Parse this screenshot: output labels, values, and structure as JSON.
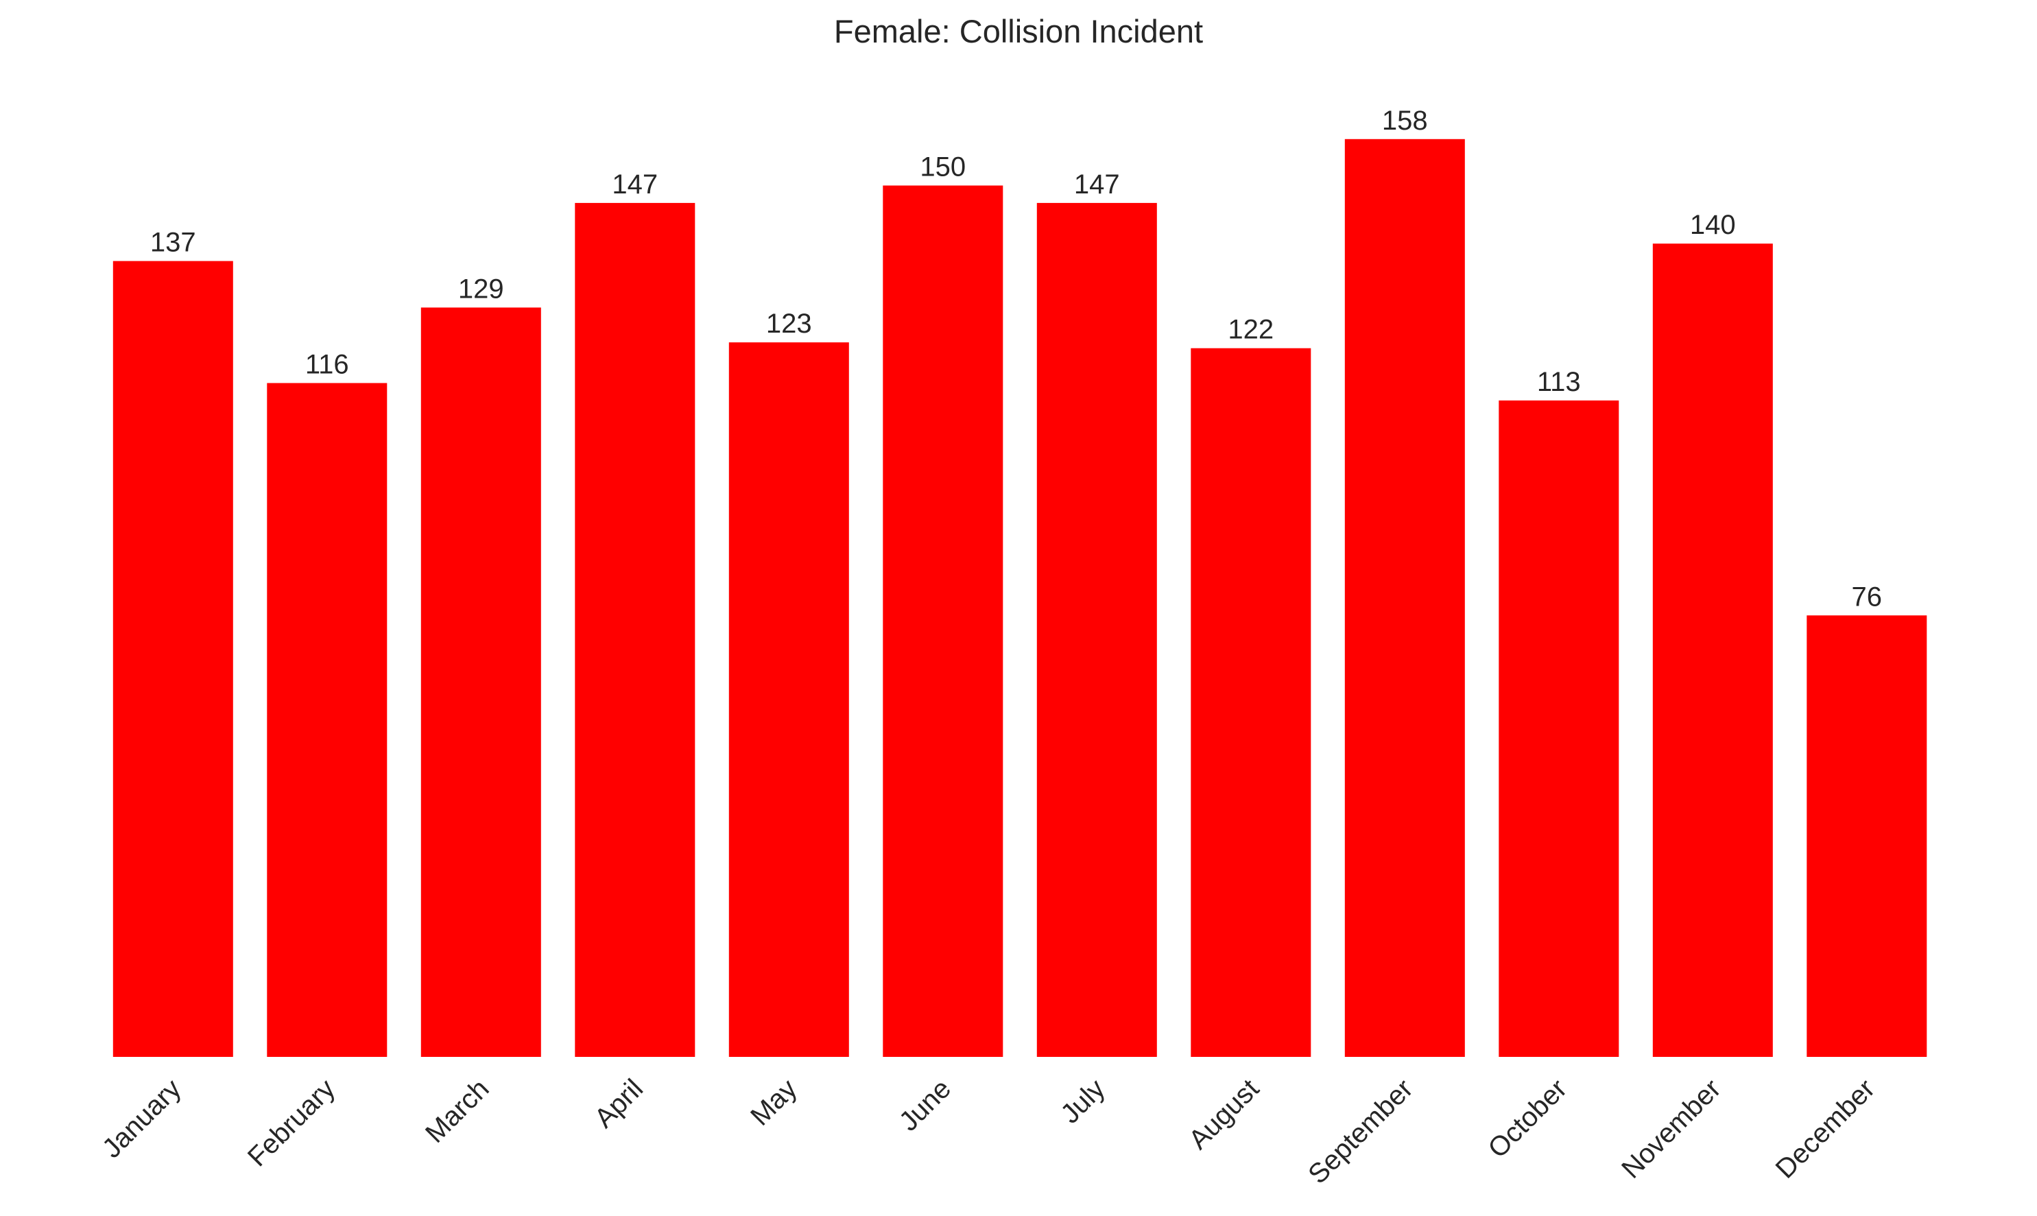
{
  "chart_data": {
    "type": "bar",
    "title": "Female: Collision Incident",
    "xlabel": "",
    "ylabel": "",
    "categories": [
      "January",
      "February",
      "March",
      "April",
      "May",
      "June",
      "July",
      "August",
      "September",
      "October",
      "November",
      "December"
    ],
    "values": [
      137,
      116,
      129,
      147,
      123,
      150,
      147,
      122,
      158,
      113,
      140,
      76
    ],
    "ylim": [
      0,
      166
    ],
    "grid": false,
    "legend": "none",
    "colors": {
      "bar": "#ff0000",
      "text": "#262626",
      "background": "#ffffff"
    }
  }
}
